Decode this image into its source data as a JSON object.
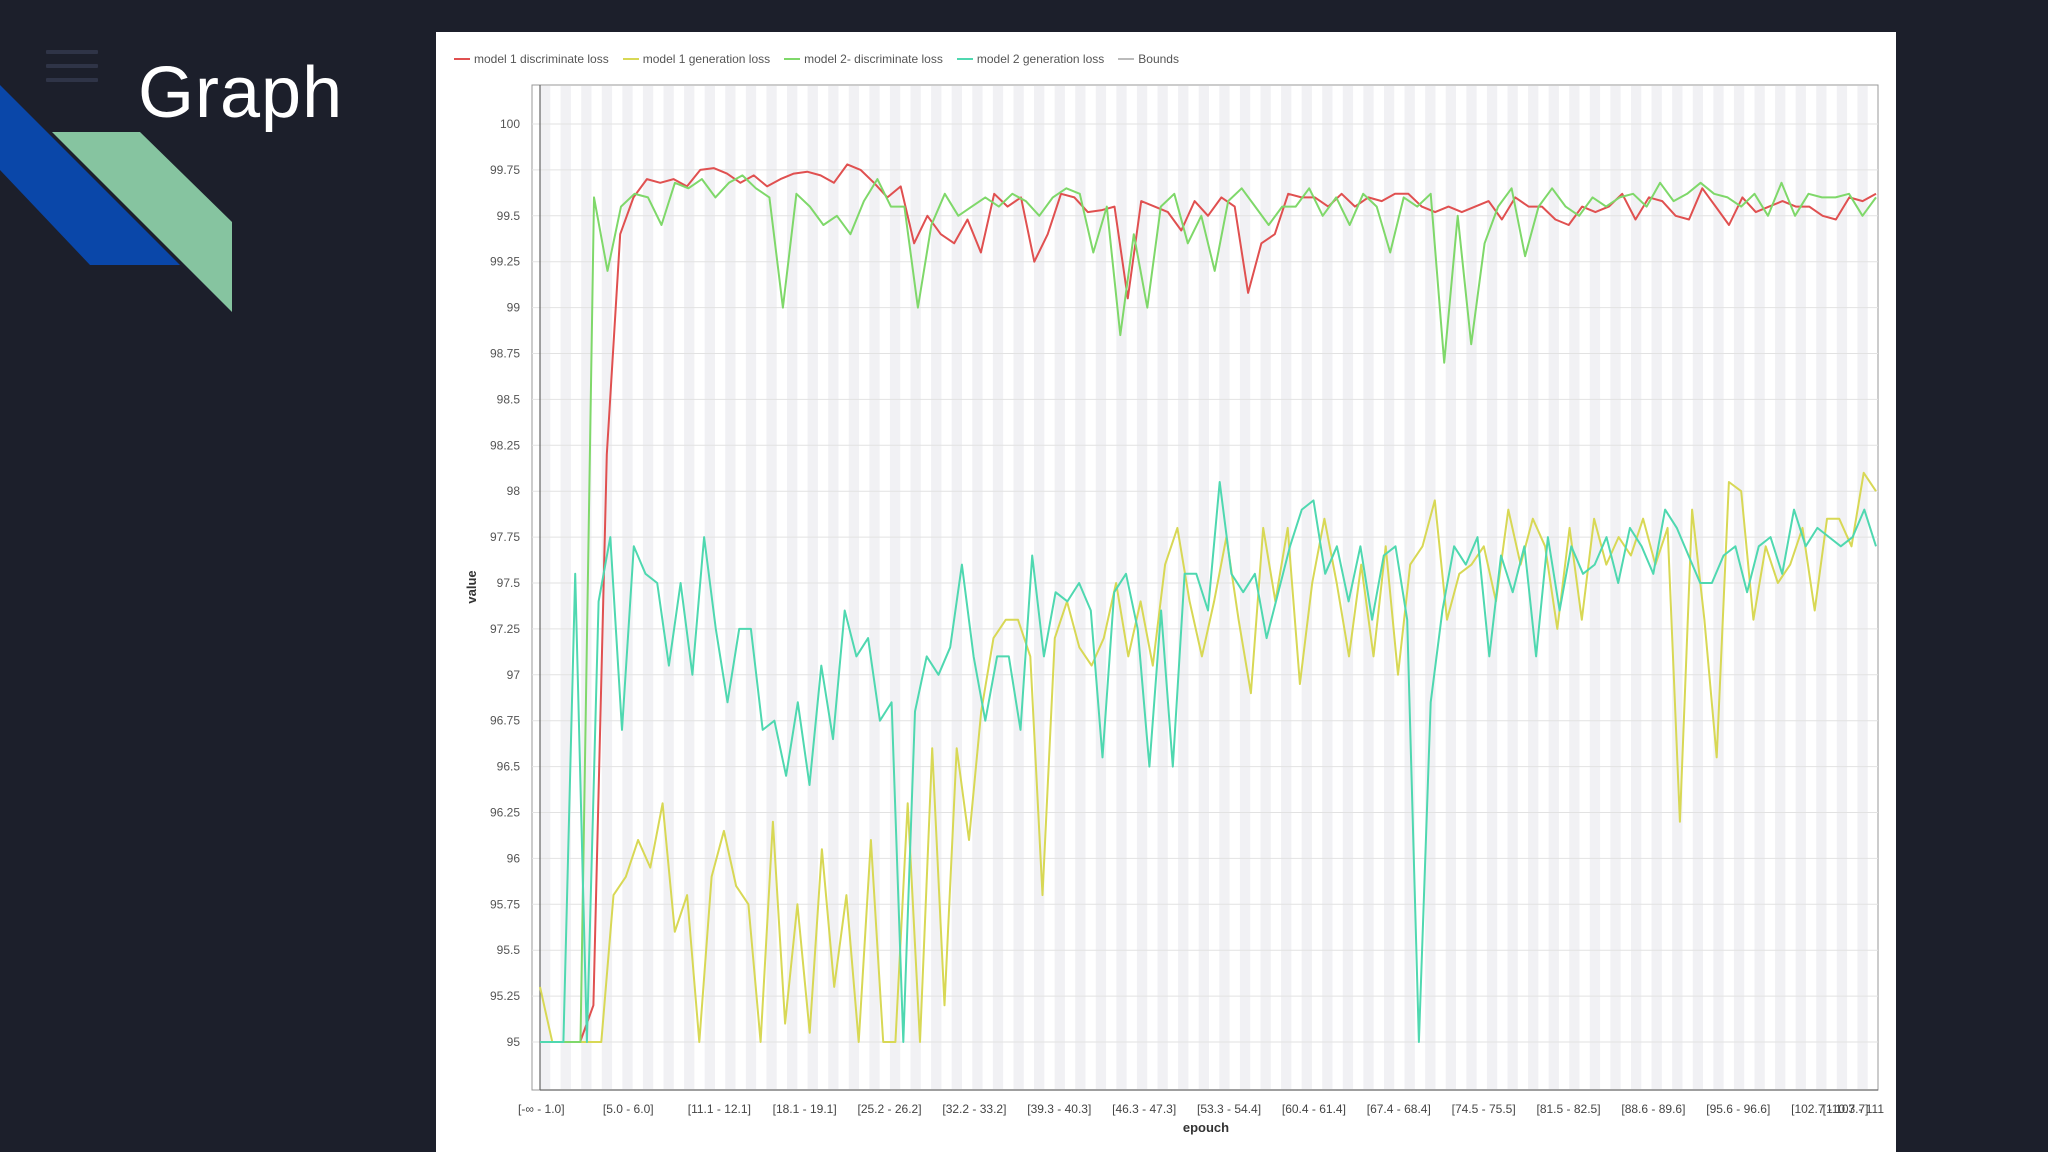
{
  "slide": {
    "title": "Graph"
  },
  "icons": {
    "menu": "hamburger-menu-icon"
  },
  "colors": {
    "background": "#1c1f2b",
    "accent_blue": "#0a47a9",
    "accent_green": "#86c4a0"
  },
  "chart_data": {
    "type": "line",
    "xlabel": "epouch",
    "ylabel": "value",
    "ylim": [
      95,
      100
    ],
    "yticks": [
      "100",
      "99.75",
      "99.5",
      "99.25",
      "99",
      "98.75",
      "98.5",
      "98.25",
      "98",
      "97.75",
      "97.5",
      "97.25",
      "97",
      "96.75",
      "96.5",
      "96.25",
      "96",
      "95.75",
      "95.5",
      "95.25",
      "95"
    ],
    "x_tick_labels": [
      "[-∞ - 1.0]",
      "[5.0 - 6.0]",
      "[11.1 - 12.1]",
      "[18.1 - 19.1]",
      "[25.2 - 26.2]",
      "[32.2 - 33.2]",
      "[39.3 - 40.3]",
      "[46.3 - 47.3]",
      "[53.3 - 54.4]",
      "[60.4 - 61.4]",
      "[67.4 - 68.4]",
      "[74.5 - 75.5]",
      "[81.5 - 82.5]",
      "[88.6 - 89.6]",
      "[95.6 - 96.6]",
      "[102.7 - 103.7]",
      "[110.7 - 111"
    ],
    "legend": [
      "model 1 discriminate loss",
      "model 1 generation loss",
      "model 2- discriminate loss",
      "model 2 generation loss",
      "Bounds"
    ],
    "legend_colors": [
      "#e05050",
      "#d8d855",
      "#7fd86a",
      "#4fd8b0",
      "#bbbbbb"
    ],
    "series": [
      {
        "name": "model 1 discriminate loss",
        "color": "#e05050",
        "values": [
          95,
          95,
          95,
          95,
          95.2,
          98.2,
          99.4,
          99.6,
          99.7,
          99.68,
          99.7,
          99.66,
          99.75,
          99.76,
          99.73,
          99.68,
          99.72,
          99.66,
          99.7,
          99.73,
          99.74,
          99.72,
          99.68,
          99.78,
          99.75,
          99.68,
          99.6,
          99.66,
          99.35,
          99.5,
          99.4,
          99.35,
          99.48,
          99.3,
          99.62,
          99.55,
          99.6,
          99.25,
          99.4,
          99.62,
          99.6,
          99.52,
          99.53,
          99.55,
          99.05,
          99.58,
          99.55,
          99.52,
          99.42,
          99.58,
          99.5,
          99.6,
          99.55,
          99.08,
          99.35,
          99.4,
          99.62,
          99.6,
          99.6,
          99.55,
          99.62,
          99.55,
          99.6,
          99.58,
          99.62,
          99.62,
          99.55,
          99.52,
          99.55,
          99.52,
          99.55,
          99.58,
          99.48,
          99.6,
          99.55,
          99.55,
          99.48,
          99.45,
          99.55,
          99.52,
          99.55,
          99.62,
          99.48,
          99.6,
          99.58,
          99.5,
          99.48,
          99.65,
          99.55,
          99.45,
          99.6,
          99.52,
          99.55,
          99.58,
          99.55,
          99.55,
          99.5,
          99.48,
          99.6,
          99.58,
          99.62
        ]
      },
      {
        "name": "model 1 generation loss",
        "color": "#d8d855",
        "values": [
          95.3,
          95,
          95,
          95,
          95,
          95,
          95.8,
          95.9,
          96.1,
          95.95,
          96.3,
          95.6,
          95.8,
          95,
          95.9,
          96.15,
          95.85,
          95.75,
          95,
          96.2,
          95.1,
          95.75,
          95.05,
          96.05,
          95.3,
          95.8,
          95,
          96.1,
          95,
          95,
          96.3,
          95,
          96.6,
          95.2,
          96.6,
          96.1,
          96.8,
          97.2,
          97.3,
          97.3,
          97.1,
          95.8,
          97.2,
          97.4,
          97.15,
          97.05,
          97.2,
          97.5,
          97.1,
          97.4,
          97.05,
          97.6,
          97.8,
          97.4,
          97.1,
          97.4,
          97.75,
          97.3,
          96.9,
          97.8,
          97.4,
          97.8,
          96.95,
          97.5,
          97.85,
          97.5,
          97.1,
          97.6,
          97.1,
          97.7,
          97.0,
          97.6,
          97.7,
          97.95,
          97.3,
          97.55,
          97.6,
          97.7,
          97.4,
          97.9,
          97.6,
          97.85,
          97.7,
          97.25,
          97.8,
          97.3,
          97.85,
          97.6,
          97.75,
          97.65,
          97.85,
          97.6,
          97.8,
          96.2,
          97.9,
          97.3,
          96.55,
          98.05,
          98.0,
          97.3,
          97.7,
          97.5,
          97.6,
          97.8,
          97.35,
          97.85,
          97.85,
          97.7,
          98.1,
          98.0
        ]
      },
      {
        "name": "model 2- discriminate loss",
        "color": "#7fd86a",
        "values": [
          95,
          95,
          95,
          95,
          99.6,
          99.2,
          99.55,
          99.62,
          99.6,
          99.45,
          99.68,
          99.65,
          99.7,
          99.6,
          99.68,
          99.72,
          99.65,
          99.6,
          99.0,
          99.62,
          99.55,
          99.45,
          99.5,
          99.4,
          99.58,
          99.7,
          99.55,
          99.55,
          99.0,
          99.45,
          99.62,
          99.5,
          99.55,
          99.6,
          99.55,
          99.62,
          99.58,
          99.5,
          99.6,
          99.65,
          99.62,
          99.3,
          99.55,
          98.85,
          99.4,
          99.0,
          99.55,
          99.62,
          99.35,
          99.5,
          99.2,
          99.58,
          99.65,
          99.55,
          99.45,
          99.55,
          99.55,
          99.65,
          99.5,
          99.6,
          99.45,
          99.62,
          99.55,
          99.3,
          99.6,
          99.55,
          99.62,
          98.7,
          99.5,
          98.8,
          99.35,
          99.55,
          99.65,
          99.28,
          99.55,
          99.65,
          99.55,
          99.5,
          99.6,
          99.55,
          99.6,
          99.62,
          99.55,
          99.68,
          99.58,
          99.62,
          99.68,
          99.62,
          99.6,
          99.55,
          99.62,
          99.5,
          99.68,
          99.5,
          99.62,
          99.6,
          99.6,
          99.62,
          99.5,
          99.6
        ]
      },
      {
        "name": "model 2 generation loss",
        "color": "#4fd8b0",
        "values": [
          95,
          95,
          95,
          97.55,
          95,
          97.4,
          97.75,
          96.7,
          97.7,
          97.55,
          97.5,
          97.05,
          97.5,
          97.0,
          97.75,
          97.25,
          96.85,
          97.25,
          97.25,
          96.7,
          96.75,
          96.45,
          96.85,
          96.4,
          97.05,
          96.65,
          97.35,
          97.1,
          97.2,
          96.75,
          96.85,
          95,
          96.8,
          97.1,
          97.0,
          97.15,
          97.6,
          97.1,
          96.75,
          97.1,
          97.1,
          96.7,
          97.65,
          97.1,
          97.45,
          97.4,
          97.5,
          97.35,
          96.55,
          97.45,
          97.55,
          97.25,
          96.5,
          97.35,
          96.5,
          97.55,
          97.55,
          97.35,
          98.05,
          97.55,
          97.45,
          97.55,
          97.2,
          97.45,
          97.7,
          97.9,
          97.95,
          97.55,
          97.7,
          97.4,
          97.7,
          97.3,
          97.65,
          97.7,
          97.3,
          95,
          96.85,
          97.35,
          97.7,
          97.6,
          97.75,
          97.1,
          97.65,
          97.45,
          97.7,
          97.1,
          97.75,
          97.35,
          97.7,
          97.55,
          97.6,
          97.75,
          97.5,
          97.8,
          97.7,
          97.55,
          97.9,
          97.8,
          97.65,
          97.5,
          97.5,
          97.65,
          97.7,
          97.45,
          97.7,
          97.75,
          97.55,
          97.9,
          97.7,
          97.8,
          97.75,
          97.7,
          97.75,
          97.9,
          97.7
        ]
      }
    ],
    "grid": true,
    "legend_position": "top-left"
  }
}
